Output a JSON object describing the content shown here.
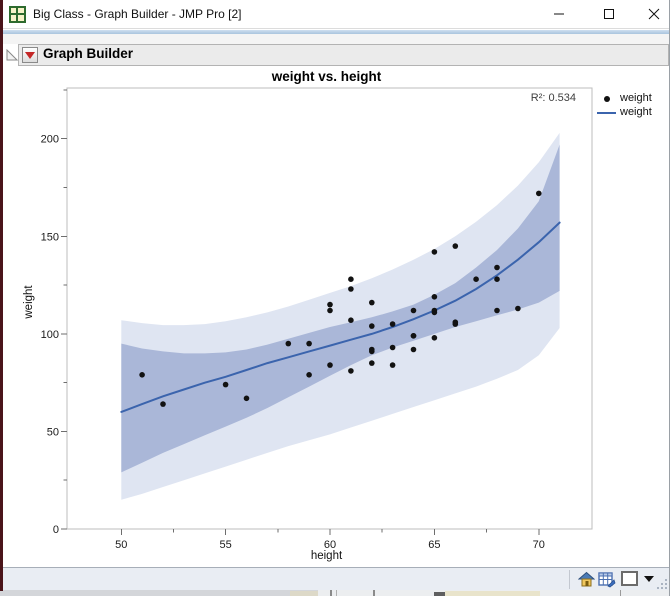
{
  "window": {
    "title": "Big Class - Graph Builder - JMP Pro [2]",
    "controls": {
      "minimize": "minimize",
      "maximize": "maximize",
      "close": "close"
    }
  },
  "header": {
    "title": "Graph Builder"
  },
  "chart_data": {
    "type": "scatter",
    "title": "weight vs. height",
    "xlabel": "height",
    "ylabel": "weight",
    "annotation": "R²: 0.534",
    "legend": [
      {
        "label": "weight",
        "marker": "point"
      },
      {
        "label": "weight",
        "marker": "line"
      }
    ],
    "legend_position": "right-top",
    "grid": false,
    "x_range": [
      47.4,
      72.55
    ],
    "y_range": [
      0,
      226
    ],
    "x_ticks_major": [
      50,
      55,
      60,
      65,
      70
    ],
    "x_ticks_minor": [
      52.5,
      57.5,
      62.5,
      67.5
    ],
    "y_ticks_major": [
      0,
      50,
      100,
      150,
      200
    ],
    "y_ticks_minor": [
      25,
      75,
      125,
      175,
      225
    ],
    "points": [
      [
        59,
        95
      ],
      [
        61,
        123
      ],
      [
        55,
        74
      ],
      [
        66,
        145
      ],
      [
        52,
        64
      ],
      [
        60,
        84
      ],
      [
        61,
        128
      ],
      [
        51,
        79
      ],
      [
        60,
        112
      ],
      [
        61,
        107
      ],
      [
        56,
        67
      ],
      [
        65,
        98
      ],
      [
        63,
        105
      ],
      [
        58,
        95
      ],
      [
        59,
        79
      ],
      [
        61,
        81
      ],
      [
        62,
        91
      ],
      [
        65,
        142
      ],
      [
        63,
        84
      ],
      [
        62,
        85
      ],
      [
        63,
        93
      ],
      [
        64,
        99
      ],
      [
        65,
        119
      ],
      [
        64,
        92
      ],
      [
        68,
        112
      ],
      [
        64,
        99
      ],
      [
        69,
        113
      ],
      [
        62,
        92
      ],
      [
        64,
        112
      ],
      [
        67,
        128
      ],
      [
        65,
        111
      ],
      [
        66,
        105
      ],
      [
        62,
        104
      ],
      [
        66,
        106
      ],
      [
        65,
        112
      ],
      [
        60,
        115
      ],
      [
        68,
        128
      ],
      [
        62,
        116
      ],
      [
        68,
        134
      ],
      [
        70,
        172
      ]
    ],
    "smoother": {
      "x": [
        50,
        51,
        52,
        53,
        54,
        55,
        56,
        57,
        58,
        59,
        60,
        61,
        62,
        63,
        64,
        65,
        66,
        67,
        68,
        69,
        70,
        71
      ],
      "y": [
        60,
        64,
        68,
        71.5,
        75,
        78,
        81.5,
        85,
        88,
        91,
        94,
        97,
        100,
        103.5,
        107.5,
        112,
        117,
        123,
        130,
        138,
        147,
        157
      ]
    },
    "inner_band": {
      "x": [
        50,
        51,
        52,
        53,
        54,
        55,
        56,
        57,
        58,
        59,
        60,
        61,
        62,
        63,
        64,
        65,
        66,
        67,
        68,
        69,
        70,
        71
      ],
      "top": [
        95,
        92.5,
        91,
        90,
        90,
        90.5,
        92,
        94.5,
        97.5,
        100.5,
        103.5,
        106,
        108.5,
        111.5,
        115,
        120,
        126,
        134,
        143,
        154,
        168,
        197
      ],
      "bottom": [
        29,
        34,
        39,
        43.5,
        48,
        52.5,
        57,
        62,
        67.5,
        73,
        78.5,
        84,
        89,
        93,
        96.5,
        100,
        103.5,
        106.5,
        109.5,
        112.5,
        116,
        122
      ]
    },
    "outer_band": {
      "x": [
        50,
        51,
        52,
        53,
        54,
        55,
        56,
        57,
        58,
        59,
        60,
        61,
        62,
        63,
        64,
        65,
        66,
        67,
        68,
        69,
        70,
        71
      ],
      "top": [
        107,
        105.5,
        104.5,
        104.5,
        105,
        106.5,
        108.5,
        111,
        114,
        117.5,
        121,
        124.5,
        128.5,
        133,
        138,
        143.5,
        150,
        157.5,
        166,
        176,
        188,
        203
      ],
      "bottom": [
        15,
        18,
        21.5,
        25,
        28.5,
        32,
        35.5,
        39,
        42.5,
        45.5,
        48.5,
        52,
        55.5,
        59,
        62.5,
        66,
        69.5,
        73,
        77,
        81.5,
        89,
        103
      ]
    },
    "colors": {
      "point": "#121212",
      "line": "#3b64ad",
      "inner_band": "#aab7d8",
      "outer_band": "#dfe5f2",
      "frame": "#bdbdbd",
      "tick": "#6e6e6e"
    }
  },
  "status_bar": {
    "icons": [
      "home-icon",
      "data-table-icon",
      "window-color-swatch",
      "dropdown-arrow"
    ]
  }
}
